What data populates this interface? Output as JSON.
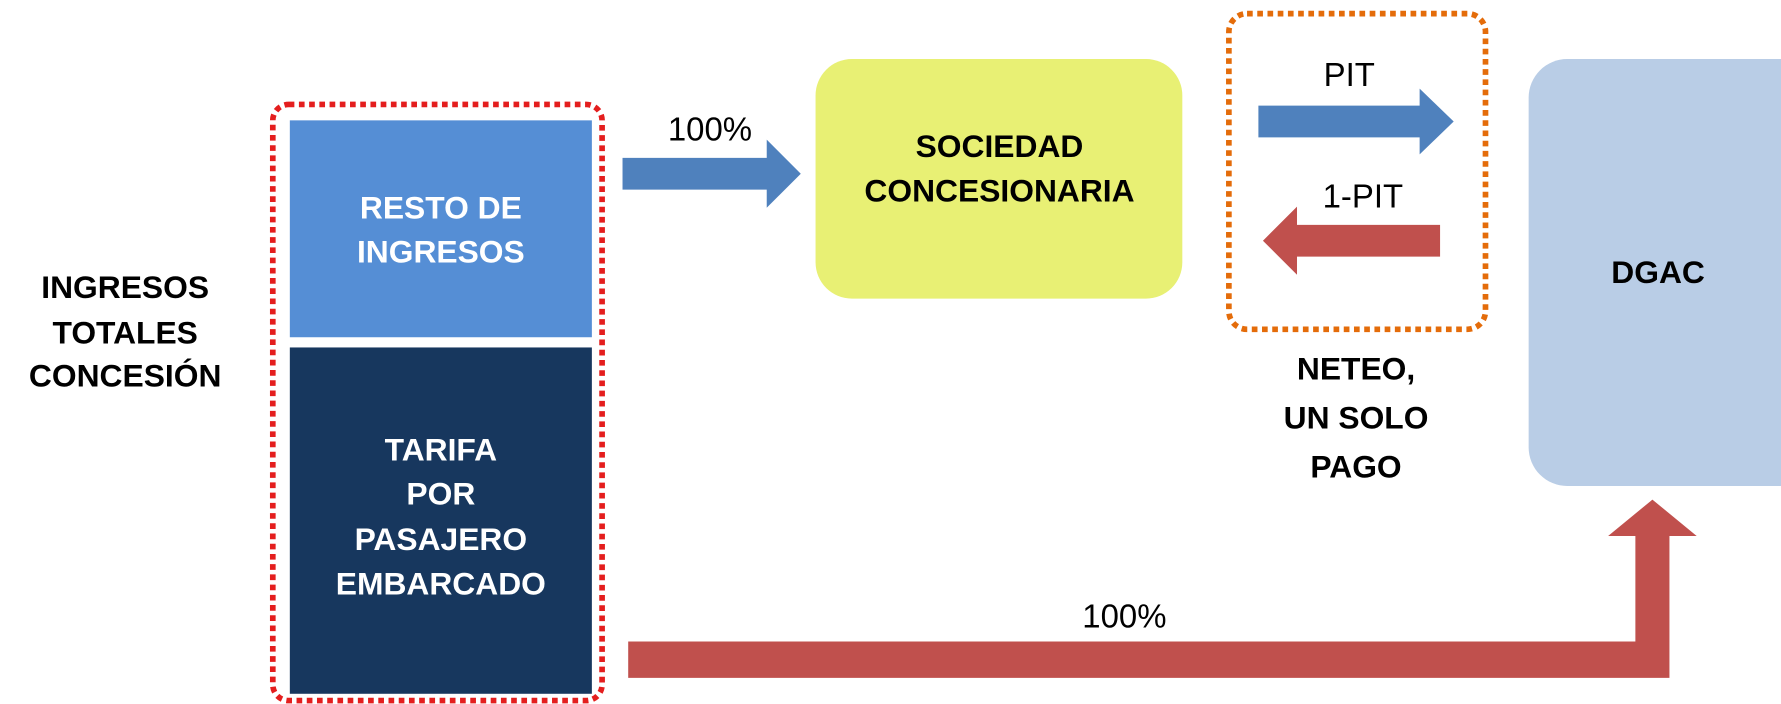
{
  "source": {
    "lines": [
      "INGRESOS",
      "TOTALES",
      "CONCESIÓN"
    ]
  },
  "resto": {
    "lines": [
      "RESTO DE",
      "INGRESOS"
    ]
  },
  "tarifa": {
    "lines": [
      "TARIFA",
      "POR",
      "PASAJERO",
      "EMBARCADO"
    ]
  },
  "sociedad": {
    "lines": [
      "SOCIEDAD",
      "CONCESIONARIA"
    ]
  },
  "dgac": {
    "label": "DGAC"
  },
  "netting": {
    "lines": [
      "NETEO,",
      "UN SOLO",
      "PAGO"
    ]
  },
  "arrows": {
    "resto_to_sociedad": "100%",
    "pit": "PIT",
    "one_minus_pit": "1-PIT",
    "tarifa_to_dgac": "100%"
  }
}
